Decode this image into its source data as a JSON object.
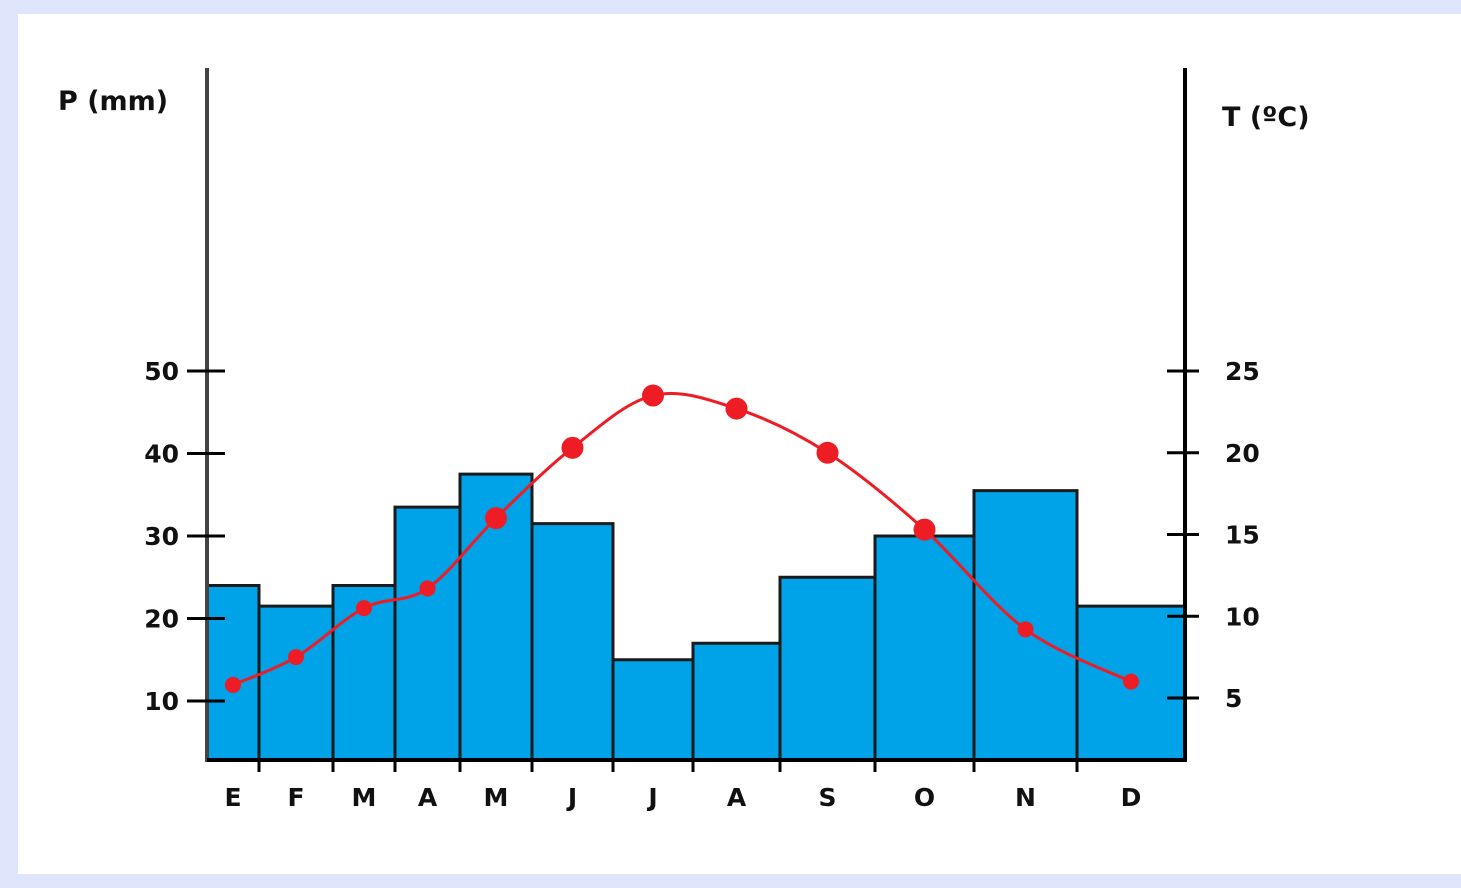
{
  "chart_data": {
    "type": "bar+line",
    "categories": [
      "E",
      "F",
      "M",
      "A",
      "M",
      "J",
      "J",
      "A",
      "S",
      "O",
      "N",
      "D"
    ],
    "series": [
      {
        "axis": "left",
        "type": "bar",
        "values": [
          24,
          21.5,
          24,
          33.5,
          37.5,
          31.5,
          15,
          17,
          25,
          30,
          35.5,
          21.5
        ]
      },
      {
        "axis": "right",
        "type": "line",
        "values": [
          5.8,
          7.5,
          10.5,
          11.7,
          16,
          20.3,
          23.5,
          22.7,
          20,
          15.3,
          9.2,
          6
        ]
      }
    ],
    "left_axis": {
      "label": "P (mm)",
      "ticks": [
        10,
        20,
        30,
        40,
        50
      ]
    },
    "right_axis": {
      "label": "T (ºC)",
      "ticks": [
        5,
        10,
        15,
        20,
        25
      ]
    },
    "colors": {
      "bars": "#00a2e8",
      "line": "#ee1c24",
      "axis": "#000000"
    },
    "legend": "none",
    "grid": false
  }
}
